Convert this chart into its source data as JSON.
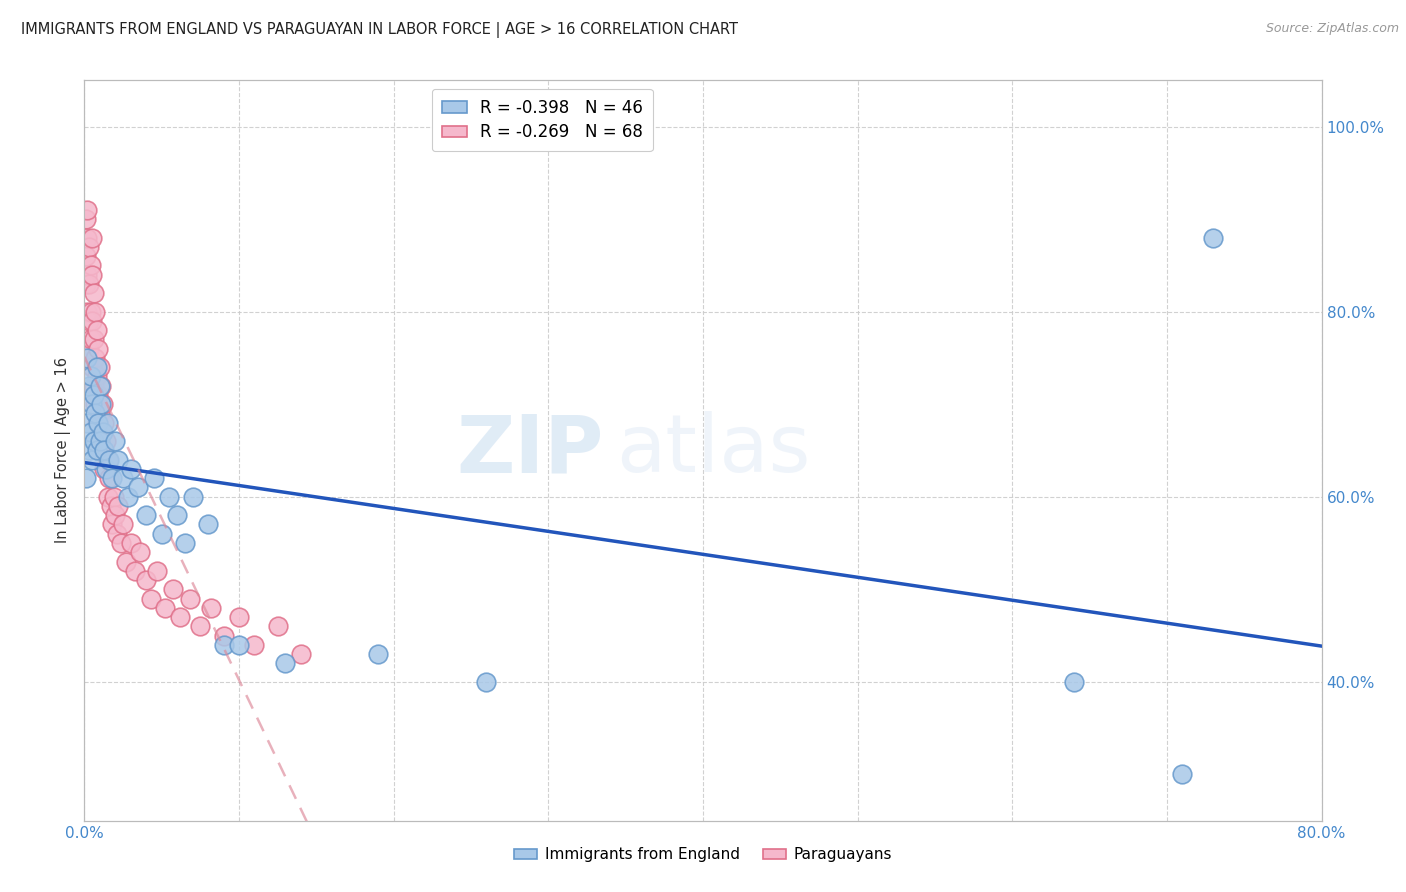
{
  "title": "IMMIGRANTS FROM ENGLAND VS PARAGUAYAN IN LABOR FORCE | AGE > 16 CORRELATION CHART",
  "source": "Source: ZipAtlas.com",
  "ylabel": "In Labor Force | Age > 16",
  "legend_england": "R = -0.398   N = 46",
  "legend_paraguay": "R = -0.269   N = 68",
  "legend_label_england": "Immigrants from England",
  "legend_label_paraguay": "Paraguayans",
  "england_color": "#a8c8e8",
  "england_edge_color": "#6699cc",
  "paraguay_color": "#f5b8cc",
  "paraguay_edge_color": "#e0708a",
  "england_line_color": "#2255bb",
  "paraguay_line_color": "#dd8899",
  "watermark_zip": "ZIP",
  "watermark_atlas": "atlas",
  "xlim": [
    0.0,
    0.8
  ],
  "ylim": [
    0.25,
    1.05
  ],
  "england_scatter_x": [
    0.001,
    0.002,
    0.002,
    0.003,
    0.003,
    0.004,
    0.004,
    0.005,
    0.005,
    0.006,
    0.006,
    0.007,
    0.008,
    0.008,
    0.009,
    0.01,
    0.01,
    0.011,
    0.012,
    0.013,
    0.014,
    0.015,
    0.016,
    0.018,
    0.02,
    0.022,
    0.025,
    0.028,
    0.03,
    0.035,
    0.04,
    0.045,
    0.05,
    0.055,
    0.06,
    0.065,
    0.07,
    0.08,
    0.09,
    0.1,
    0.13,
    0.19,
    0.26,
    0.64,
    0.71,
    0.73
  ],
  "england_scatter_y": [
    0.62,
    0.68,
    0.75,
    0.65,
    0.72,
    0.67,
    0.73,
    0.64,
    0.7,
    0.66,
    0.71,
    0.69,
    0.65,
    0.74,
    0.68,
    0.72,
    0.66,
    0.7,
    0.67,
    0.65,
    0.63,
    0.68,
    0.64,
    0.62,
    0.66,
    0.64,
    0.62,
    0.6,
    0.63,
    0.61,
    0.58,
    0.62,
    0.56,
    0.6,
    0.58,
    0.55,
    0.6,
    0.57,
    0.44,
    0.44,
    0.42,
    0.43,
    0.4,
    0.4,
    0.3,
    0.88
  ],
  "paraguay_scatter_x": [
    0.001,
    0.001,
    0.001,
    0.002,
    0.002,
    0.002,
    0.002,
    0.003,
    0.003,
    0.003,
    0.003,
    0.004,
    0.004,
    0.004,
    0.005,
    0.005,
    0.005,
    0.005,
    0.006,
    0.006,
    0.006,
    0.007,
    0.007,
    0.007,
    0.008,
    0.008,
    0.008,
    0.009,
    0.009,
    0.01,
    0.01,
    0.01,
    0.011,
    0.011,
    0.012,
    0.012,
    0.013,
    0.013,
    0.014,
    0.015,
    0.015,
    0.016,
    0.017,
    0.018,
    0.019,
    0.02,
    0.021,
    0.022,
    0.024,
    0.025,
    0.027,
    0.03,
    0.033,
    0.036,
    0.04,
    0.043,
    0.047,
    0.052,
    0.057,
    0.062,
    0.068,
    0.075,
    0.082,
    0.09,
    0.1,
    0.11,
    0.125,
    0.14
  ],
  "paraguay_scatter_y": [
    0.9,
    0.86,
    0.83,
    0.91,
    0.88,
    0.84,
    0.8,
    0.87,
    0.83,
    0.79,
    0.76,
    0.85,
    0.8,
    0.77,
    0.88,
    0.84,
    0.79,
    0.74,
    0.82,
    0.77,
    0.72,
    0.8,
    0.75,
    0.7,
    0.78,
    0.73,
    0.68,
    0.76,
    0.71,
    0.74,
    0.69,
    0.65,
    0.72,
    0.67,
    0.7,
    0.65,
    0.68,
    0.63,
    0.66,
    0.64,
    0.6,
    0.62,
    0.59,
    0.57,
    0.6,
    0.58,
    0.56,
    0.59,
    0.55,
    0.57,
    0.53,
    0.55,
    0.52,
    0.54,
    0.51,
    0.49,
    0.52,
    0.48,
    0.5,
    0.47,
    0.49,
    0.46,
    0.48,
    0.45,
    0.47,
    0.44,
    0.46,
    0.43
  ]
}
